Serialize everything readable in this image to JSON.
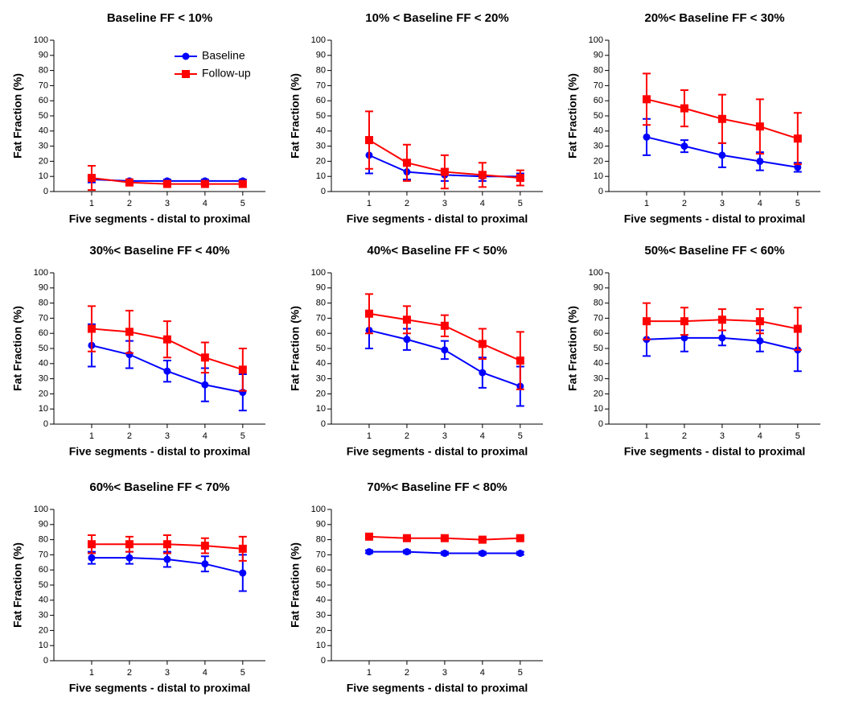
{
  "chart_data": [
    {
      "type": "line",
      "title": "Baseline FF < 10%",
      "x_label": "Five segments - distal to proximal",
      "y_label": "Fat Fraction  (%)",
      "x": [
        1,
        2,
        3,
        4,
        5
      ],
      "xlim": [
        0,
        5.6
      ],
      "xticks": [
        1,
        2,
        3,
        4,
        5
      ],
      "ylim": [
        0,
        100
      ],
      "yticks": [
        0,
        10,
        20,
        30,
        40,
        50,
        60,
        70,
        80,
        90,
        100
      ],
      "legend": "upper right",
      "series": [
        {
          "name": "Baseline",
          "color": "#0000ff",
          "marker": "circle",
          "values": [
            8,
            7,
            7,
            7,
            7
          ],
          "errors": [
            2,
            1,
            1,
            1,
            1
          ]
        },
        {
          "name": "Follow-up",
          "color": "#ff0000",
          "marker": "square",
          "values": [
            9,
            6,
            5,
            5,
            5
          ],
          "errors": [
            8,
            2,
            1,
            1,
            1
          ]
        }
      ]
    },
    {
      "type": "line",
      "title": "10% < Baseline FF < 20%",
      "x_label": "Five segments - distal to proximal",
      "y_label": "Fat Fraction  (%)",
      "x": [
        1,
        2,
        3,
        4,
        5
      ],
      "xlim": [
        0,
        5.6
      ],
      "xticks": [
        1,
        2,
        3,
        4,
        5
      ],
      "ylim": [
        0,
        100
      ],
      "yticks": [
        0,
        10,
        20,
        30,
        40,
        50,
        60,
        70,
        80,
        90,
        100
      ],
      "series": [
        {
          "color": "#0000ff",
          "marker": "circle",
          "values": [
            24,
            13,
            11,
            10,
            10
          ],
          "errors": [
            12,
            5,
            4,
            3,
            2
          ]
        },
        {
          "color": "#ff0000",
          "marker": "square",
          "values": [
            34,
            19,
            13,
            11,
            9
          ],
          "errors": [
            19,
            12,
            11,
            8,
            5
          ]
        }
      ]
    },
    {
      "type": "line",
      "title": "20%< Baseline FF < 30%",
      "x_label": "Five segments - distal to proximal",
      "y_label": "Fat Fraction  (%)",
      "x": [
        1,
        2,
        3,
        4,
        5
      ],
      "xlim": [
        0,
        5.6
      ],
      "xticks": [
        1,
        2,
        3,
        4,
        5
      ],
      "ylim": [
        0,
        100
      ],
      "yticks": [
        0,
        10,
        20,
        30,
        40,
        50,
        60,
        70,
        80,
        90,
        100
      ],
      "series": [
        {
          "color": "#0000ff",
          "marker": "circle",
          "values": [
            36,
            30,
            24,
            20,
            16
          ],
          "errors": [
            12,
            4,
            8,
            6,
            3
          ]
        },
        {
          "color": "#ff0000",
          "marker": "square",
          "values": [
            61,
            55,
            48,
            43,
            35
          ],
          "errors": [
            17,
            12,
            16,
            18,
            17
          ]
        }
      ]
    },
    {
      "type": "line",
      "title": "30%< Baseline FF < 40%",
      "x_label": "Five segments - distal to proximal",
      "y_label": "Fat Fraction  (%)",
      "x": [
        1,
        2,
        3,
        4,
        5
      ],
      "xlim": [
        0,
        5.6
      ],
      "xticks": [
        1,
        2,
        3,
        4,
        5
      ],
      "ylim": [
        0,
        100
      ],
      "yticks": [
        0,
        10,
        20,
        30,
        40,
        50,
        60,
        70,
        80,
        90,
        100
      ],
      "series": [
        {
          "color": "#0000ff",
          "marker": "circle",
          "values": [
            52,
            46,
            35,
            26,
            21
          ],
          "errors": [
            14,
            9,
            7,
            11,
            12
          ]
        },
        {
          "color": "#ff0000",
          "marker": "square",
          "values": [
            63,
            61,
            56,
            44,
            36
          ],
          "errors": [
            15,
            14,
            12,
            10,
            14
          ]
        }
      ]
    },
    {
      "type": "line",
      "title": "40%< Baseline FF < 50%",
      "x_label": "Five segments - distal to proximal",
      "y_label": "Fat Fraction  (%)",
      "x": [
        1,
        2,
        3,
        4,
        5
      ],
      "xlim": [
        0,
        5.6
      ],
      "xticks": [
        1,
        2,
        3,
        4,
        5
      ],
      "ylim": [
        0,
        100
      ],
      "yticks": [
        0,
        10,
        20,
        30,
        40,
        50,
        60,
        70,
        80,
        90,
        100
      ],
      "series": [
        {
          "color": "#0000ff",
          "marker": "circle",
          "values": [
            62,
            56,
            49,
            34,
            25
          ],
          "errors": [
            12,
            7,
            6,
            10,
            13
          ]
        },
        {
          "color": "#ff0000",
          "marker": "square",
          "values": [
            73,
            69,
            65,
            53,
            42
          ],
          "errors": [
            13,
            9,
            7,
            10,
            19
          ]
        }
      ]
    },
    {
      "type": "line",
      "title": "50%< Baseline FF < 60%",
      "x_label": "Five segments - distal to proximal",
      "y_label": "Fat Fraction  (%)",
      "x": [
        1,
        2,
        3,
        4,
        5
      ],
      "xlim": [
        0,
        5.6
      ],
      "xticks": [
        1,
        2,
        3,
        4,
        5
      ],
      "ylim": [
        0,
        100
      ],
      "yticks": [
        0,
        10,
        20,
        30,
        40,
        50,
        60,
        70,
        80,
        90,
        100
      ],
      "series": [
        {
          "color": "#0000ff",
          "marker": "circle",
          "values": [
            56,
            57,
            57,
            55,
            49
          ],
          "errors": [
            11,
            9,
            5,
            7,
            14
          ]
        },
        {
          "color": "#ff0000",
          "marker": "square",
          "values": [
            68,
            68,
            69,
            68,
            63
          ],
          "errors": [
            12,
            9,
            7,
            8,
            14
          ]
        }
      ]
    },
    {
      "type": "line",
      "title": "60%< Baseline FF < 70%",
      "x_label": "Five segments - distal to proximal",
      "y_label": "Fat Fraction  (%)",
      "x": [
        1,
        2,
        3,
        4,
        5
      ],
      "xlim": [
        0,
        5.6
      ],
      "xticks": [
        1,
        2,
        3,
        4,
        5
      ],
      "ylim": [
        0,
        100
      ],
      "yticks": [
        0,
        10,
        20,
        30,
        40,
        50,
        60,
        70,
        80,
        90,
        100
      ],
      "series": [
        {
          "color": "#0000ff",
          "marker": "circle",
          "values": [
            68,
            68,
            67,
            64,
            58
          ],
          "errors": [
            4,
            4,
            5,
            5,
            12
          ]
        },
        {
          "color": "#ff0000",
          "marker": "square",
          "values": [
            77,
            77,
            77,
            76,
            74
          ],
          "errors": [
            6,
            5,
            6,
            5,
            8
          ]
        }
      ]
    },
    {
      "type": "line",
      "title": "70%< Baseline FF < 80%",
      "x_label": "Five segments - distal to proximal",
      "y_label": "Fat Fraction  (%)",
      "x": [
        1,
        2,
        3,
        4,
        5
      ],
      "xlim": [
        0,
        5.6
      ],
      "xticks": [
        1,
        2,
        3,
        4,
        5
      ],
      "ylim": [
        0,
        100
      ],
      "yticks": [
        0,
        10,
        20,
        30,
        40,
        50,
        60,
        70,
        80,
        90,
        100
      ],
      "series": [
        {
          "color": "#0000ff",
          "marker": "circle",
          "values": [
            72,
            72,
            71,
            71,
            71
          ],
          "errors": [
            1,
            1,
            1,
            1,
            1
          ]
        },
        {
          "color": "#ff0000",
          "marker": "square",
          "values": [
            82,
            81,
            81,
            80,
            81
          ],
          "errors": [
            1,
            1,
            1,
            1,
            1
          ]
        }
      ]
    }
  ]
}
